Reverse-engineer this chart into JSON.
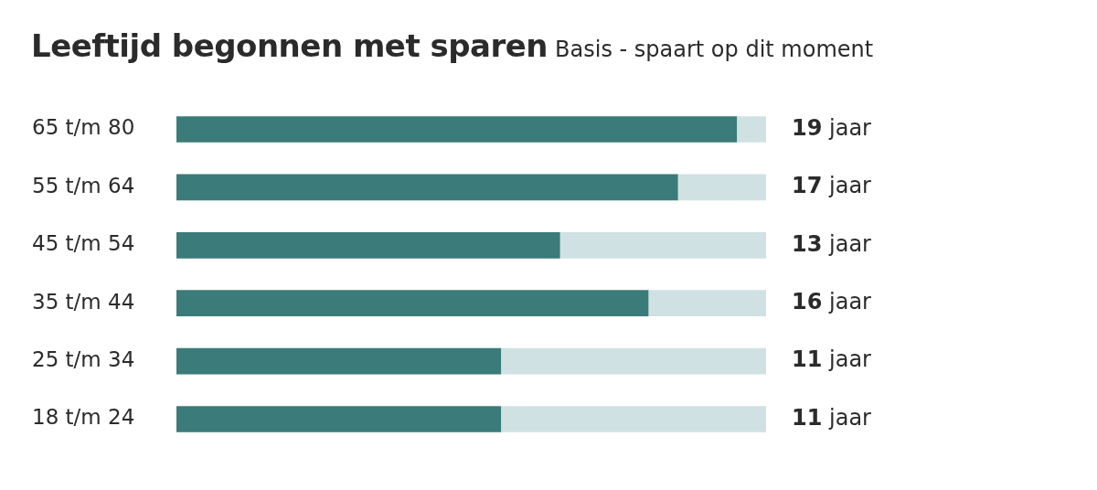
{
  "chart_data": {
    "type": "bar",
    "orientation": "horizontal",
    "stacked": true,
    "title": "Leeftijd begonnen met sparen",
    "subtitle": "Basis - spaart op dit moment",
    "categories": [
      "65 t/m 80",
      "55 t/m 64",
      "45 t/m 54",
      "35 t/m 44",
      "25 t/m 34",
      "18 t/m 24"
    ],
    "series": [
      {
        "color": "#3b7b79",
        "values": [
          19,
          17,
          13,
          16,
          11,
          11
        ],
        "value_labels": [
          "19 jaar",
          "17 jaar",
          "13 jaar",
          "16 jaar",
          "11 jaar",
          "11 jaar"
        ]
      },
      {
        "color": "#d0e1e4",
        "values": [
          1,
          3,
          7,
          4,
          9,
          9
        ]
      }
    ],
    "xlim": [
      0,
      20
    ],
    "tick_labels": "y",
    "legend": false
  }
}
